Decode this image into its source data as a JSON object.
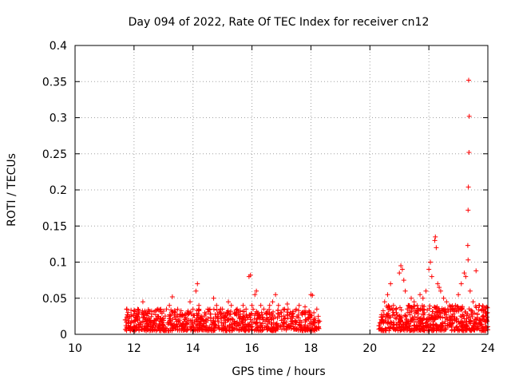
{
  "chart_data": {
    "type": "scatter",
    "title": "Day 094 of 2022, Rate Of TEC Index for receiver cn12",
    "xlabel": "GPS time / hours",
    "ylabel": "ROTI / TECUs",
    "xlim": [
      10,
      24
    ],
    "ylim": [
      0,
      0.4
    ],
    "xticks": [
      10,
      12,
      14,
      16,
      18,
      20,
      22,
      24
    ],
    "xtick_labels": [
      "10",
      "12",
      "14",
      "16",
      "18",
      "20",
      "22",
      "24"
    ],
    "yticks": [
      0,
      0.05,
      0.1,
      0.15,
      0.2,
      0.25,
      0.3,
      0.35,
      0.4
    ],
    "ytick_labels": [
      "0",
      "0.05",
      "0.1",
      "0.15",
      "0.2",
      "0.25",
      "0.3",
      "0.35",
      "0.4"
    ],
    "grid": true,
    "marker": "+",
    "color": "#ff0000",
    "series": [
      {
        "name": "ROTI",
        "points": [
          [
            11.7,
            0.02
          ],
          [
            11.8,
            0.015
          ],
          [
            11.9,
            0.025
          ],
          [
            12.0,
            0.018
          ],
          [
            12.1,
            0.022
          ],
          [
            12.2,
            0.016
          ],
          [
            12.3,
            0.045
          ],
          [
            12.4,
            0.03
          ],
          [
            12.5,
            0.02
          ],
          [
            12.6,
            0.028
          ],
          [
            12.7,
            0.015
          ],
          [
            12.8,
            0.025
          ],
          [
            12.9,
            0.018
          ],
          [
            13.0,
            0.022
          ],
          [
            13.1,
            0.035
          ],
          [
            13.2,
            0.04
          ],
          [
            13.3,
            0.052
          ],
          [
            13.4,
            0.03
          ],
          [
            13.5,
            0.02
          ],
          [
            13.6,
            0.025
          ],
          [
            13.7,
            0.018
          ],
          [
            13.8,
            0.03
          ],
          [
            13.9,
            0.045
          ],
          [
            14.0,
            0.035
          ],
          [
            14.1,
            0.06
          ],
          [
            14.15,
            0.07
          ],
          [
            14.2,
            0.04
          ],
          [
            14.3,
            0.025
          ],
          [
            14.4,
            0.03
          ],
          [
            14.5,
            0.035
          ],
          [
            14.6,
            0.028
          ],
          [
            14.7,
            0.05
          ],
          [
            14.8,
            0.04
          ],
          [
            14.9,
            0.03
          ],
          [
            15.0,
            0.035
          ],
          [
            15.1,
            0.025
          ],
          [
            15.2,
            0.045
          ],
          [
            15.3,
            0.04
          ],
          [
            15.4,
            0.03
          ],
          [
            15.5,
            0.035
          ],
          [
            15.6,
            0.028
          ],
          [
            15.7,
            0.04
          ],
          [
            15.8,
            0.035
          ],
          [
            15.9,
            0.08
          ],
          [
            15.95,
            0.082
          ],
          [
            16.0,
            0.04
          ],
          [
            16.1,
            0.055
          ],
          [
            16.15,
            0.06
          ],
          [
            16.2,
            0.03
          ],
          [
            16.3,
            0.04
          ],
          [
            16.4,
            0.035
          ],
          [
            16.5,
            0.03
          ],
          [
            16.6,
            0.04
          ],
          [
            16.7,
            0.045
          ],
          [
            16.8,
            0.055
          ],
          [
            16.9,
            0.04
          ],
          [
            17.0,
            0.03
          ],
          [
            17.1,
            0.035
          ],
          [
            17.2,
            0.042
          ],
          [
            17.3,
            0.03
          ],
          [
            17.4,
            0.025
          ],
          [
            17.5,
            0.035
          ],
          [
            17.6,
            0.04
          ],
          [
            17.7,
            0.03
          ],
          [
            17.8,
            0.038
          ],
          [
            17.9,
            0.03
          ],
          [
            18.0,
            0.055
          ],
          [
            18.05,
            0.054
          ],
          [
            18.1,
            0.03
          ],
          [
            18.2,
            0.035
          ],
          [
            18.25,
            0.025
          ],
          [
            20.4,
            0.02
          ],
          [
            20.5,
            0.045
          ],
          [
            20.6,
            0.055
          ],
          [
            20.7,
            0.07
          ],
          [
            20.8,
            0.04
          ],
          [
            20.9,
            0.03
          ],
          [
            21.0,
            0.085
          ],
          [
            21.05,
            0.095
          ],
          [
            21.1,
            0.09
          ],
          [
            21.15,
            0.075
          ],
          [
            21.2,
            0.06
          ],
          [
            21.3,
            0.04
          ],
          [
            21.4,
            0.05
          ],
          [
            21.5,
            0.045
          ],
          [
            21.6,
            0.04
          ],
          [
            21.7,
            0.055
          ],
          [
            21.8,
            0.05
          ],
          [
            21.9,
            0.06
          ],
          [
            22.0,
            0.09
          ],
          [
            22.05,
            0.1
          ],
          [
            22.1,
            0.08
          ],
          [
            22.2,
            0.13
          ],
          [
            22.22,
            0.135
          ],
          [
            22.25,
            0.12
          ],
          [
            22.3,
            0.07
          ],
          [
            22.35,
            0.065
          ],
          [
            22.4,
            0.06
          ],
          [
            22.5,
            0.05
          ],
          [
            22.6,
            0.045
          ],
          [
            22.7,
            0.04
          ],
          [
            22.8,
            0.035
          ],
          [
            22.9,
            0.04
          ],
          [
            23.0,
            0.055
          ],
          [
            23.1,
            0.07
          ],
          [
            23.2,
            0.085
          ],
          [
            23.25,
            0.08
          ],
          [
            23.35,
            0.352
          ],
          [
            23.37,
            0.302
          ],
          [
            23.36,
            0.252
          ],
          [
            23.34,
            0.204
          ],
          [
            23.33,
            0.172
          ],
          [
            23.32,
            0.123
          ],
          [
            23.33,
            0.103
          ],
          [
            23.6,
            0.088
          ],
          [
            23.4,
            0.06
          ],
          [
            23.5,
            0.045
          ],
          [
            23.7,
            0.04
          ],
          [
            23.8,
            0.035
          ],
          [
            23.9,
            0.03
          ],
          [
            23.95,
            0.02
          ]
        ]
      }
    ],
    "dense_segments": [
      {
        "x_start": 11.7,
        "x_end": 18.3,
        "y_min": 0.005,
        "y_max": 0.035,
        "count": 900,
        "seed": 7
      },
      {
        "x_start": 20.3,
        "x_end": 24.0,
        "y_min": 0.005,
        "y_max": 0.04,
        "count": 600,
        "seed": 11
      }
    ]
  }
}
